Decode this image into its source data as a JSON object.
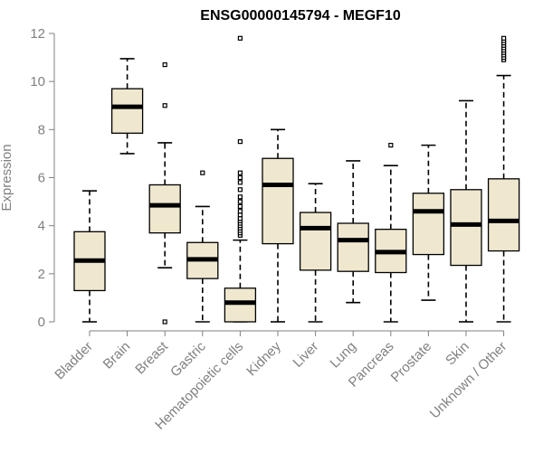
{
  "chart_data": {
    "type": "box",
    "title": "ENSG00000145794 - MEGF10",
    "xlabel": "",
    "ylabel": "Expression",
    "ylim": [
      0,
      12
    ],
    "yticks": [
      0,
      2,
      4,
      6,
      8,
      10,
      12
    ],
    "grid": false,
    "legend": "none",
    "colors": {
      "box_fill": "#efe8cf",
      "box_stroke": "#000000",
      "axis": "#808080"
    },
    "categories": [
      "Bladder",
      "Brain",
      "Breast",
      "Gastric",
      "Hematopoietic cells",
      "Kidney",
      "Liver",
      "Lung",
      "Pancreas",
      "Prostate",
      "Skin",
      "Unknown / Other"
    ],
    "boxes": [
      {
        "category": "Bladder",
        "whisker_low": 0,
        "q1": 1.3,
        "median": 2.55,
        "q3": 3.75,
        "whisker_high": 5.45,
        "outliers": []
      },
      {
        "category": "Brain",
        "whisker_low": 7.0,
        "q1": 7.85,
        "median": 8.95,
        "q3": 9.7,
        "whisker_high": 10.95,
        "outliers": []
      },
      {
        "category": "Breast",
        "whisker_low": 2.25,
        "q1": 3.7,
        "median": 4.85,
        "q3": 5.7,
        "whisker_high": 7.45,
        "outliers": [
          0,
          9.0,
          10.7
        ]
      },
      {
        "category": "Gastric",
        "whisker_low": 0,
        "q1": 1.8,
        "median": 2.6,
        "q3": 3.3,
        "whisker_high": 4.8,
        "outliers": [
          6.2
        ]
      },
      {
        "category": "Hematopoietic cells",
        "whisker_low": 0,
        "q1": 0,
        "median": 0.8,
        "q3": 1.4,
        "whisker_high": 3.4,
        "outliers": [
          3.6,
          3.7,
          3.8,
          3.9,
          4.0,
          4.1,
          4.2,
          4.3,
          4.45,
          4.6,
          4.8,
          5.0,
          5.2,
          5.5,
          5.8,
          6.0,
          6.2,
          7.5,
          11.8
        ]
      },
      {
        "category": "Kidney",
        "whisker_low": 0,
        "q1": 3.25,
        "median": 5.7,
        "q3": 6.8,
        "whisker_high": 8.0,
        "outliers": []
      },
      {
        "category": "Liver",
        "whisker_low": 0,
        "q1": 2.15,
        "median": 3.9,
        "q3": 4.55,
        "whisker_high": 5.75,
        "outliers": []
      },
      {
        "category": "Lung",
        "whisker_low": 0.8,
        "q1": 2.1,
        "median": 3.4,
        "q3": 4.1,
        "whisker_high": 6.7,
        "outliers": []
      },
      {
        "category": "Pancreas",
        "whisker_low": 0,
        "q1": 2.05,
        "median": 2.9,
        "q3": 3.85,
        "whisker_high": 6.5,
        "outliers": [
          7.35
        ]
      },
      {
        "category": "Prostate",
        "whisker_low": 0.9,
        "q1": 2.8,
        "median": 4.6,
        "q3": 5.35,
        "whisker_high": 7.35,
        "outliers": []
      },
      {
        "category": "Skin",
        "whisker_low": 0,
        "q1": 2.35,
        "median": 4.05,
        "q3": 5.5,
        "whisker_high": 9.2,
        "outliers": []
      },
      {
        "category": "Unknown / Other",
        "whisker_low": 0,
        "q1": 2.95,
        "median": 4.2,
        "q3": 5.95,
        "whisker_high": 10.25,
        "outliers": [
          10.9,
          11.0,
          11.1,
          11.2,
          11.3,
          11.4,
          11.5,
          11.6,
          11.7,
          11.8
        ]
      }
    ]
  }
}
